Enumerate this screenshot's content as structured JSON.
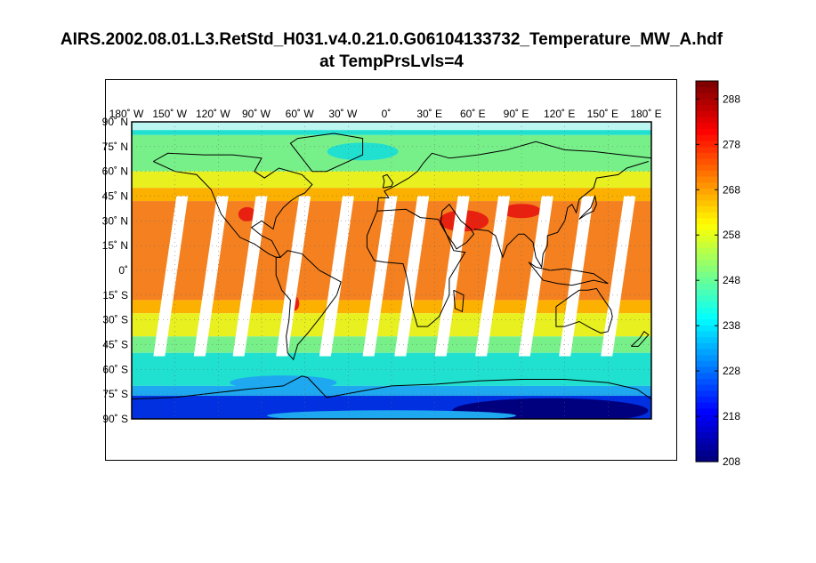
{
  "title": {
    "line1": "AIRS.2002.08.01.L3.RetStd_H031.v4.0.21.0.G06104133732_Temperature_MW_A.hdf",
    "line2": "at TempPrsLvls=4"
  },
  "map": {
    "projection": "equirectangular",
    "lon_range": [
      -180,
      180
    ],
    "lat_range": [
      -90,
      90
    ],
    "lon_ticks": [
      {
        "value": -180,
        "label": "180",
        "dir": "W"
      },
      {
        "value": -150,
        "label": "150",
        "dir": "W"
      },
      {
        "value": -120,
        "label": "120",
        "dir": "W"
      },
      {
        "value": -90,
        "label": "90",
        "dir": "W"
      },
      {
        "value": -60,
        "label": "60",
        "dir": "W"
      },
      {
        "value": -30,
        "label": "30",
        "dir": "W"
      },
      {
        "value": 0,
        "label": "0",
        "dir": ""
      },
      {
        "value": 30,
        "label": "30",
        "dir": "E"
      },
      {
        "value": 60,
        "label": "60",
        "dir": "E"
      },
      {
        "value": 90,
        "label": "90",
        "dir": "E"
      },
      {
        "value": 120,
        "label": "120",
        "dir": "E"
      },
      {
        "value": 150,
        "label": "150",
        "dir": "E"
      },
      {
        "value": 180,
        "label": "180",
        "dir": "E"
      }
    ],
    "lat_ticks": [
      {
        "value": 90,
        "label": "90",
        "dir": "N"
      },
      {
        "value": 75,
        "label": "75",
        "dir": "N"
      },
      {
        "value": 60,
        "label": "60",
        "dir": "N"
      },
      {
        "value": 45,
        "label": "45",
        "dir": "N"
      },
      {
        "value": 30,
        "label": "30",
        "dir": "N"
      },
      {
        "value": 15,
        "label": "15",
        "dir": "N"
      },
      {
        "value": 0,
        "label": "0",
        "dir": ""
      },
      {
        "value": -15,
        "label": "15",
        "dir": "S"
      },
      {
        "value": -30,
        "label": "30",
        "dir": "S"
      },
      {
        "value": -45,
        "label": "45",
        "dir": "S"
      },
      {
        "value": -60,
        "label": "60",
        "dir": "S"
      },
      {
        "value": -75,
        "label": "75",
        "dir": "S"
      },
      {
        "value": -90,
        "label": "90",
        "dir": "S"
      }
    ],
    "grid": "dotted",
    "swath_gaps_lon": [
      -155,
      -127,
      -100,
      -70,
      -40,
      -10,
      12,
      40,
      68,
      98,
      126,
      155
    ]
  },
  "colorbar": {
    "min": 208,
    "max": 292,
    "tick_values": [
      208,
      218,
      228,
      238,
      248,
      258,
      268,
      278,
      288
    ],
    "tick_labels": [
      "208",
      "218",
      "228",
      "238",
      "248",
      "258",
      "268",
      "278",
      "288"
    ],
    "colormap": "jet"
  },
  "colors": {
    "band_0": "#00007f",
    "band_1": "#0030e0",
    "band_2": "#1ea8f0",
    "band_3": "#20e0d0",
    "band_4": "#78f08a",
    "band_5": "#e8f020",
    "band_6": "#fcb000",
    "band_7": "#f48020",
    "band_8": "#e82010",
    "coast": "#000000",
    "gap": "#ffffff"
  }
}
